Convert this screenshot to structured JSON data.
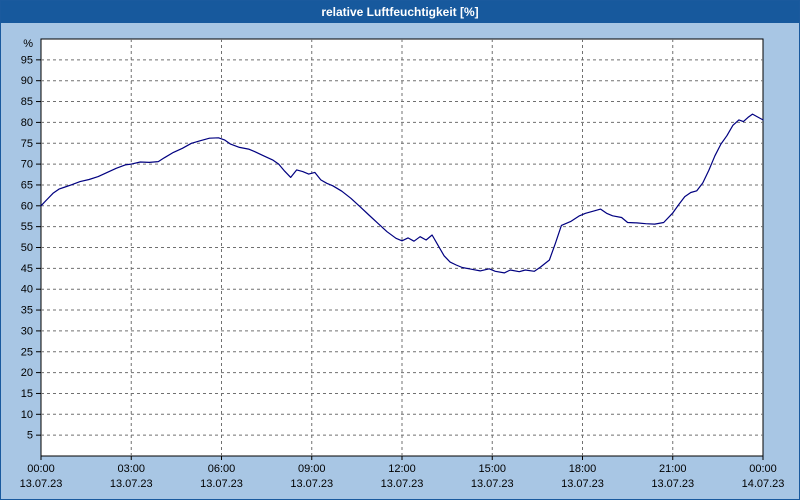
{
  "window": {
    "title": "relative Luftfeuchtigkeit [%]"
  },
  "colors": {
    "background": "#a8c6e4",
    "titlebar": "#17599d",
    "titlebar_text": "#ffffff",
    "plot_bg": "#ffffff",
    "grid": "#707070",
    "axis": "#000000",
    "line": "#000080"
  },
  "chart_data": {
    "type": "line",
    "title": "relative Luftfeuchtigkeit [%]",
    "ylabel": "%",
    "ylim": [
      0,
      100
    ],
    "yticks": [
      5,
      10,
      15,
      20,
      25,
      30,
      35,
      40,
      45,
      50,
      55,
      60,
      65,
      70,
      75,
      80,
      85,
      90,
      95
    ],
    "grid": "dashed",
    "legend": "none",
    "x_ticks": [
      {
        "hour": 0,
        "time": "00:00",
        "date": "13.07.23"
      },
      {
        "hour": 3,
        "time": "03:00",
        "date": "13.07.23"
      },
      {
        "hour": 6,
        "time": "06:00",
        "date": "13.07.23"
      },
      {
        "hour": 9,
        "time": "09:00",
        "date": "13.07.23"
      },
      {
        "hour": 12,
        "time": "12:00",
        "date": "13.07.23"
      },
      {
        "hour": 15,
        "time": "15:00",
        "date": "13.07.23"
      },
      {
        "hour": 18,
        "time": "18:00",
        "date": "13.07.23"
      },
      {
        "hour": 21,
        "time": "21:00",
        "date": "13.07.23"
      },
      {
        "hour": 24,
        "time": "00:00",
        "date": "14.07.23"
      }
    ],
    "series": [
      {
        "name": "relative Luftfeuchtigkeit",
        "color": "#000080",
        "points": [
          [
            0,
            60
          ],
          [
            0.2,
            61.5
          ],
          [
            0.4,
            63
          ],
          [
            0.6,
            64
          ],
          [
            0.8,
            64.5
          ],
          [
            1,
            65
          ],
          [
            1.3,
            65.8
          ],
          [
            1.6,
            66.3
          ],
          [
            1.9,
            67
          ],
          [
            2.2,
            68
          ],
          [
            2.5,
            69
          ],
          [
            2.8,
            69.8
          ],
          [
            3,
            70
          ],
          [
            3.3,
            70.5
          ],
          [
            3.6,
            70.4
          ],
          [
            3.9,
            70.6
          ],
          [
            4.1,
            71.5
          ],
          [
            4.4,
            72.8
          ],
          [
            4.7,
            73.8
          ],
          [
            5,
            75
          ],
          [
            5.3,
            75.6
          ],
          [
            5.6,
            76.2
          ],
          [
            5.9,
            76.3
          ],
          [
            6.1,
            75.8
          ],
          [
            6.3,
            74.8
          ],
          [
            6.6,
            74
          ],
          [
            6.9,
            73.6
          ],
          [
            7.1,
            73
          ],
          [
            7.4,
            72
          ],
          [
            7.7,
            71
          ],
          [
            7.9,
            70
          ],
          [
            8.1,
            68.3
          ],
          [
            8.3,
            66.8
          ],
          [
            8.5,
            68.6
          ],
          [
            8.7,
            68.2
          ],
          [
            8.9,
            67.6
          ],
          [
            9.1,
            68
          ],
          [
            9.3,
            66.2
          ],
          [
            9.5,
            65.4
          ],
          [
            9.7,
            64.8
          ],
          [
            10,
            63.5
          ],
          [
            10.3,
            61.8
          ],
          [
            10.6,
            59.8
          ],
          [
            10.9,
            57.8
          ],
          [
            11.2,
            55.8
          ],
          [
            11.5,
            53.8
          ],
          [
            11.8,
            52.2
          ],
          [
            12,
            51.6
          ],
          [
            12.2,
            52.3
          ],
          [
            12.4,
            51.5
          ],
          [
            12.6,
            52.6
          ],
          [
            12.8,
            51.8
          ],
          [
            13,
            53
          ],
          [
            13.2,
            50.5
          ],
          [
            13.4,
            48
          ],
          [
            13.6,
            46.5
          ],
          [
            13.8,
            45.8
          ],
          [
            14,
            45.2
          ],
          [
            14.3,
            44.8
          ],
          [
            14.6,
            44.4
          ],
          [
            14.9,
            44.9
          ],
          [
            15.1,
            44.3
          ],
          [
            15.4,
            43.9
          ],
          [
            15.6,
            44.6
          ],
          [
            15.9,
            44.2
          ],
          [
            16.1,
            44.6
          ],
          [
            16.4,
            44.3
          ],
          [
            16.6,
            45.3
          ],
          [
            16.9,
            47
          ],
          [
            17.1,
            51
          ],
          [
            17.3,
            55.3
          ],
          [
            17.6,
            56.2
          ],
          [
            17.9,
            57.6
          ],
          [
            18.1,
            58.2
          ],
          [
            18.4,
            58.8
          ],
          [
            18.6,
            59.2
          ],
          [
            18.8,
            58.2
          ],
          [
            19,
            57.6
          ],
          [
            19.3,
            57.2
          ],
          [
            19.5,
            56
          ],
          [
            19.8,
            55.9
          ],
          [
            20.1,
            55.7
          ],
          [
            20.4,
            55.6
          ],
          [
            20.7,
            56
          ],
          [
            21,
            58.3
          ],
          [
            21.2,
            60.3
          ],
          [
            21.4,
            62.2
          ],
          [
            21.6,
            63.2
          ],
          [
            21.8,
            63.6
          ],
          [
            22,
            65.5
          ],
          [
            22.2,
            68.5
          ],
          [
            22.4,
            72
          ],
          [
            22.6,
            74.8
          ],
          [
            22.8,
            76.8
          ],
          [
            23,
            79.3
          ],
          [
            23.2,
            80.6
          ],
          [
            23.35,
            80.2
          ],
          [
            23.5,
            81.2
          ],
          [
            23.65,
            82
          ],
          [
            23.8,
            81.4
          ],
          [
            24,
            80.6
          ]
        ]
      }
    ]
  }
}
